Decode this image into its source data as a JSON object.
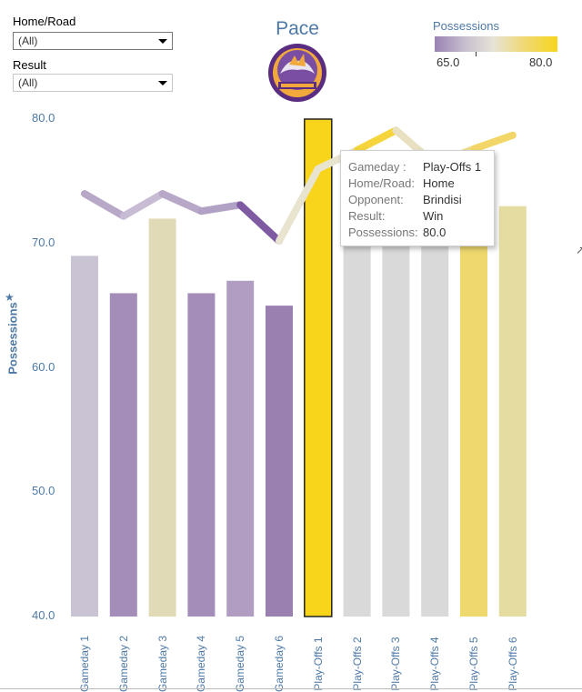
{
  "filters": {
    "home_road": {
      "label": "Home/Road",
      "value": "(All)"
    },
    "result": {
      "label": "Result",
      "value": "(All)"
    }
  },
  "title": "Pace",
  "logo": {
    "icon": "team-logo",
    "colors": {
      "ring": "#5a2d82",
      "fill": "#f2a93b"
    }
  },
  "legend": {
    "title": "Possessions",
    "min_label": "65.0",
    "max_label": "80.0"
  },
  "tooltip": {
    "rows": [
      {
        "key": "Gameday :",
        "value": "Play-Offs 1"
      },
      {
        "key": "Home/Road:",
        "value": "Home"
      },
      {
        "key": "Opponent:",
        "value": "Brindisi"
      },
      {
        "key": "Result:",
        "value": "Win"
      },
      {
        "key": "Possessions:",
        "value": "80.0"
      }
    ]
  },
  "chart_data": {
    "type": "bar",
    "title": "Pace",
    "ylabel": "Possessions",
    "xlabel": "",
    "ylim": [
      40,
      80
    ],
    "yticks": [
      "40.0",
      "50.0",
      "60.0",
      "70.0",
      "80.0"
    ],
    "categories": [
      "Gameday 1",
      "Gameday 2",
      "Gameday 3",
      "Gameday 4",
      "Gameday 5",
      "Gameday 6",
      "Play-Offs 1",
      "Play-Offs 2",
      "Play-Offs 3",
      "Play-Offs 4",
      "Play-Offs 5",
      "Play-Offs 6"
    ],
    "values": [
      69,
      66,
      72,
      66,
      67,
      65,
      80,
      70,
      70,
      70,
      70,
      73
    ],
    "bar_colors": [
      "#c9c3d4",
      "#a48db9",
      "#e0dab7",
      "#a48db9",
      "#b09dc1",
      "#9a7fb1",
      "#f8d51b",
      "#d9d9d9",
      "#d9d9d9",
      "#d9d9d9",
      "#efd96e",
      "#e5dca2"
    ],
    "highlighted_index": 6,
    "trend_line": {
      "name": "Possessions trend",
      "values": [
        74,
        72.2,
        74,
        72.6,
        73.1,
        70.2,
        76,
        77.5,
        79.1,
        76.4,
        77.6,
        78.7
      ],
      "colors": [
        "#cdc3d8",
        "#b8a8c8",
        "#c7bcd3",
        "#b8a8c8",
        "#b1a1c4",
        "#7d5aa2",
        "#e8e4d0",
        "#e8e4d0",
        "#f5d43c",
        "#e8e0c0",
        "#efdb8e",
        "#f2d768"
      ]
    }
  }
}
